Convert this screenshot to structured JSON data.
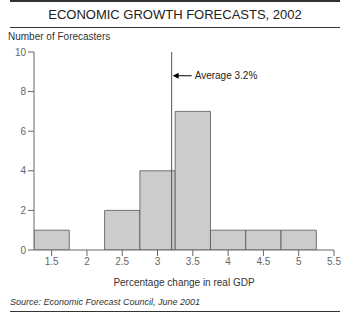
{
  "chart_data": {
    "type": "histogram",
    "title": "ECONOMIC GROWTH FORECASTS, 2002",
    "x_label": "Percentage change in real GDP",
    "y_label": "Number of Forecasters",
    "source": "Source: Economic Forecast Council, June 2001",
    "bins": [
      1.25,
      1.75,
      2.25,
      2.75,
      3.25,
      3.75,
      4.25,
      4.75,
      5.25
    ],
    "values": [
      1,
      0,
      2,
      4,
      7,
      1,
      1,
      1
    ],
    "color": "#cccccc",
    "xlim": [
      1.25,
      5.5
    ],
    "xticks": [
      1.5,
      2,
      2.5,
      3,
      3.5,
      4,
      4.5,
      5,
      5.5
    ],
    "ylim": [
      0,
      10
    ],
    "yticks": [
      0,
      2,
      4,
      6,
      8,
      10
    ],
    "grid": false,
    "annotations": [
      {
        "text": "Average 3.2%",
        "x": 3.2,
        "y": 8.8
      }
    ]
  }
}
